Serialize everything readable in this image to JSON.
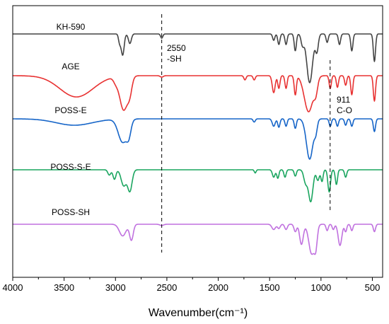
{
  "chart_data": {
    "type": "line",
    "title": "",
    "xlabel": "Wavenumber(cm⁻¹)",
    "ylabel": "",
    "xlim": [
      4000,
      400
    ],
    "x_reversed": true,
    "y_axis_shown": false,
    "grid": false,
    "legend": "inline labels above each trace",
    "x_ticks": [
      4000,
      3500,
      3000,
      2500,
      2000,
      1500,
      1000,
      500
    ],
    "series": [
      {
        "name": "KH-590",
        "color": "#c071df",
        "baseline_offset": 4,
        "peaks": [
          [
            2930,
            0.55,
            45
          ],
          [
            2845,
            0.75,
            25
          ],
          [
            2550,
            0.06,
            25
          ],
          [
            1460,
            0.25,
            25
          ],
          [
            1410,
            0.2,
            18
          ],
          [
            1340,
            0.25,
            18
          ],
          [
            1250,
            0.35,
            18
          ],
          [
            1190,
            0.95,
            25
          ],
          [
            1090,
            1.4,
            40
          ],
          [
            1050,
            0.8,
            20
          ],
          [
            940,
            0.3,
            15
          ],
          [
            880,
            0.25,
            15
          ],
          [
            815,
            1.0,
            25
          ],
          [
            760,
            0.35,
            15
          ],
          [
            700,
            0.3,
            15
          ],
          [
            480,
            0.35,
            15
          ]
        ]
      },
      {
        "name": "AGE",
        "color": "#1aa55f",
        "baseline_offset": 3,
        "peaks": [
          [
            3060,
            0.25,
            20
          ],
          [
            3010,
            0.45,
            20
          ],
          [
            2920,
            0.75,
            35
          ],
          [
            2860,
            1.0,
            30
          ],
          [
            1640,
            0.15,
            12
          ],
          [
            1460,
            0.35,
            18
          ],
          [
            1420,
            0.4,
            15
          ],
          [
            1350,
            0.35,
            15
          ],
          [
            1250,
            0.3,
            15
          ],
          [
            1150,
            0.6,
            25
          ],
          [
            1100,
            1.5,
            30
          ],
          [
            1030,
            0.5,
            20
          ],
          [
            990,
            0.55,
            15
          ],
          [
            920,
            1.05,
            18
          ],
          [
            850,
            0.7,
            15
          ],
          [
            760,
            0.35,
            15
          ]
        ]
      },
      {
        "name": "POSS-E",
        "color": "#1665c8",
        "baseline_offset": 2,
        "peaks": [
          [
            3400,
            0.3,
            250
          ],
          [
            2930,
            1.1,
            60
          ],
          [
            2870,
            0.6,
            30
          ],
          [
            1650,
            0.15,
            15
          ],
          [
            1460,
            0.35,
            20
          ],
          [
            1410,
            0.4,
            15
          ],
          [
            1340,
            0.35,
            15
          ],
          [
            1250,
            0.45,
            15
          ],
          [
            1110,
            1.9,
            45
          ],
          [
            1050,
            0.5,
            20
          ],
          [
            910,
            0.35,
            15
          ],
          [
            840,
            0.35,
            15
          ],
          [
            760,
            0.3,
            15
          ],
          [
            700,
            0.35,
            15
          ],
          [
            480,
            0.6,
            15
          ]
        ]
      },
      {
        "name": "POSS-S-E",
        "color": "#e83232",
        "baseline_offset": 1,
        "peaks": [
          [
            3380,
            1.0,
            230
          ],
          [
            3000,
            0.2,
            30
          ],
          [
            2920,
            1.6,
            55
          ],
          [
            2860,
            0.6,
            30
          ],
          [
            2550,
            0.07,
            20
          ],
          [
            1740,
            0.2,
            15
          ],
          [
            1650,
            0.2,
            15
          ],
          [
            1460,
            0.8,
            20
          ],
          [
            1410,
            0.6,
            15
          ],
          [
            1340,
            0.6,
            15
          ],
          [
            1250,
            0.9,
            15
          ],
          [
            1120,
            1.7,
            60
          ],
          [
            1050,
            0.6,
            25
          ],
          [
            910,
            0.6,
            15
          ],
          [
            840,
            0.55,
            15
          ],
          [
            760,
            0.45,
            15
          ],
          [
            700,
            0.9,
            15
          ],
          [
            480,
            1.2,
            15
          ]
        ]
      },
      {
        "name": "POSS-SH",
        "color": "#444444",
        "baseline_offset": 0,
        "peaks": [
          [
            2960,
            0.4,
            15
          ],
          [
            2930,
            1.0,
            20
          ],
          [
            2860,
            0.45,
            20
          ],
          [
            2550,
            0.2,
            15
          ],
          [
            1460,
            0.3,
            15
          ],
          [
            1410,
            0.5,
            15
          ],
          [
            1340,
            0.5,
            15
          ],
          [
            1250,
            0.8,
            15
          ],
          [
            1180,
            0.5,
            20
          ],
          [
            1110,
            2.3,
            40
          ],
          [
            1040,
            0.8,
            20
          ],
          [
            940,
            0.4,
            15
          ],
          [
            820,
            0.5,
            15
          ],
          [
            700,
            0.8,
            15
          ],
          [
            480,
            1.3,
            15
          ]
        ]
      }
    ],
    "annotations": [
      {
        "lines": [
          "2550",
          "-SH"
        ],
        "x": 2550
      },
      {
        "lines": [
          "911",
          "C-O"
        ],
        "x": 911
      }
    ]
  }
}
